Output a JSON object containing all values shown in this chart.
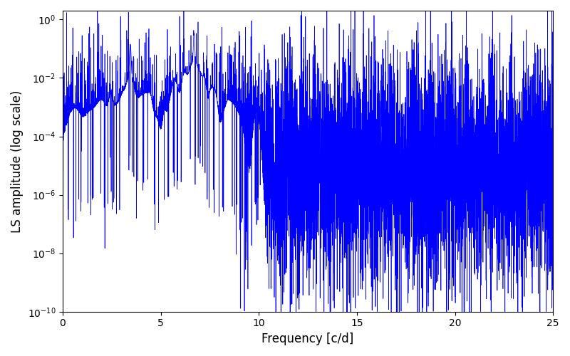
{
  "xlabel": "Frequency [c/d]",
  "ylabel": "LS amplitude (log scale)",
  "line_color": "blue",
  "background_color": "#ffffff",
  "xlim": [
    0,
    25
  ],
  "ylim": [
    1e-10,
    2.0
  ],
  "freq_min": 0.0,
  "freq_max": 25.0,
  "n_points": 8000,
  "peak1_freq": 3.45,
  "peak1_amp": 0.13,
  "peak2_freq": 6.7,
  "peak2_amp": 0.3,
  "noise_floor": 1e-05,
  "noise_sigma_log": 1.8,
  "seed": 77,
  "linewidth": 0.5,
  "figsize": [
    8.0,
    5.0
  ],
  "dpi": 100
}
